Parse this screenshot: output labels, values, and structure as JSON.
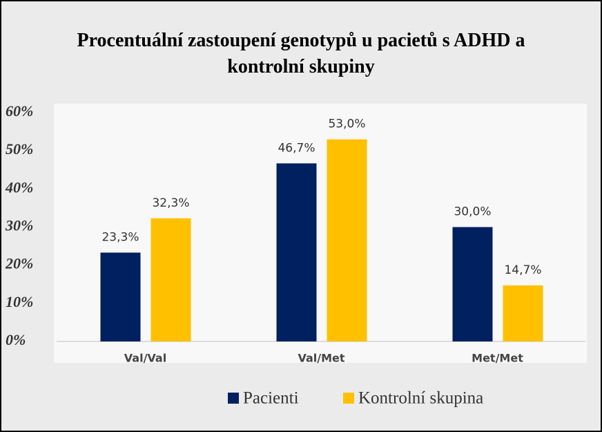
{
  "chart_data": {
    "type": "bar",
    "title": "Procentuální zastoupení genotypů u pacietů s ADHD a kontrolní skupiny",
    "categories": [
      "Val/Val",
      "Val/Met",
      "Met/Met"
    ],
    "series": [
      {
        "name": "Pacienti",
        "color": "#002060",
        "values": [
          23.3,
          46.7,
          30.0
        ],
        "value_labels": [
          "23,3%",
          "46,7%",
          "30,0%"
        ]
      },
      {
        "name": "Kontrolní skupina",
        "color": "#ffc000",
        "values": [
          32.3,
          53.0,
          14.7
        ],
        "value_labels": [
          "32,3%",
          "53,0%",
          "14,7%"
        ]
      }
    ],
    "ylim": [
      0,
      60
    ],
    "yticks": [
      {
        "value": 0,
        "label": "0%"
      },
      {
        "value": 10,
        "label": "10%"
      },
      {
        "value": 20,
        "label": "20%"
      },
      {
        "value": 30,
        "label": "30%"
      },
      {
        "value": 40,
        "label": "40%"
      },
      {
        "value": 50,
        "label": "50%"
      },
      {
        "value": 60,
        "label": "60%"
      }
    ],
    "grid": false,
    "legend": "bottom"
  }
}
